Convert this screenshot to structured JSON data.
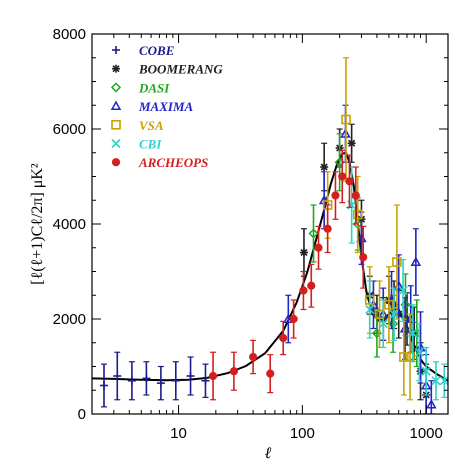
{
  "chart_data": {
    "type": "scatter",
    "xlabel": "ℓ",
    "ylabel": "[ℓ(ℓ+1)Cℓ/2π] μK²",
    "xscale": "log",
    "xlim": [
      2,
      1500
    ],
    "ylim": [
      0,
      8000
    ],
    "x_ticks": [
      10,
      100,
      1000
    ],
    "x_tick_labels": [
      "10",
      "100",
      "1000"
    ],
    "y_ticks": [
      0,
      2000,
      4000,
      6000,
      8000
    ],
    "y_tick_labels": [
      "0",
      "2000",
      "4000",
      "6000",
      "8000"
    ],
    "legend_position": "top-left",
    "model_curve": {
      "color": "#000000",
      "x": [
        2,
        3,
        5,
        8,
        12,
        17,
        25,
        35,
        50,
        70,
        90,
        110,
        130,
        150,
        170,
        190,
        210,
        225,
        240,
        260,
        280,
        300,
        330,
        370,
        420,
        480,
        540,
        600,
        700,
        800,
        900,
        1000,
        1200,
        1500
      ],
      "y": [
        750,
        740,
        720,
        710,
        720,
        760,
        860,
        1010,
        1280,
        1750,
        2350,
        3000,
        3700,
        4300,
        4850,
        5250,
        5480,
        5500,
        5300,
        4800,
        4050,
        3300,
        2550,
        2100,
        1950,
        2050,
        2200,
        2200,
        1850,
        1450,
        1150,
        1000,
        850,
        700
      ]
    },
    "series": [
      {
        "name": "COBE",
        "color": "#1c1c8c",
        "marker": "plus",
        "points": [
          {
            "x": 2.5,
            "y": 600,
            "err": 450
          },
          {
            "x": 3.2,
            "y": 800,
            "err": 500
          },
          {
            "x": 4.2,
            "y": 700,
            "err": 400
          },
          {
            "x": 5.5,
            "y": 750,
            "err": 350
          },
          {
            "x": 7.2,
            "y": 650,
            "err": 350
          },
          {
            "x": 9.5,
            "y": 700,
            "err": 400
          },
          {
            "x": 12.5,
            "y": 800,
            "err": 400
          },
          {
            "x": 16.5,
            "y": 700,
            "err": 350
          }
        ]
      },
      {
        "name": "BOOMERANG",
        "color": "#222222",
        "marker": "star",
        "points": [
          {
            "x": 103,
            "y": 3400,
            "err": 500
          },
          {
            "x": 150,
            "y": 5200,
            "err": 500
          },
          {
            "x": 200,
            "y": 5600,
            "err": 400
          },
          {
            "x": 250,
            "y": 5700,
            "err": 400
          },
          {
            "x": 300,
            "y": 4100,
            "err": 400
          },
          {
            "x": 350,
            "y": 2500,
            "err": 400
          },
          {
            "x": 400,
            "y": 2100,
            "err": 400
          },
          {
            "x": 450,
            "y": 2000,
            "err": 450
          },
          {
            "x": 500,
            "y": 2400,
            "err": 500
          },
          {
            "x": 550,
            "y": 2300,
            "err": 500
          },
          {
            "x": 600,
            "y": 2100,
            "err": 500
          },
          {
            "x": 700,
            "y": 2000,
            "err": 550
          },
          {
            "x": 800,
            "y": 1700,
            "err": 550
          },
          {
            "x": 900,
            "y": 900,
            "err": 600
          },
          {
            "x": 1000,
            "y": 400,
            "err": 650
          }
        ]
      },
      {
        "name": "DASI",
        "color": "#1fa71f",
        "marker": "diamond",
        "points": [
          {
            "x": 123,
            "y": 3800,
            "err": 600
          },
          {
            "x": 200,
            "y": 5300,
            "err": 600
          },
          {
            "x": 280,
            "y": 4000,
            "err": 550
          },
          {
            "x": 400,
            "y": 1700,
            "err": 500
          },
          {
            "x": 540,
            "y": 1900,
            "err": 600
          },
          {
            "x": 680,
            "y": 2300,
            "err": 650
          },
          {
            "x": 840,
            "y": 1700,
            "err": 700
          }
        ]
      },
      {
        "name": "MAXIMA",
        "color": "#2323c8",
        "marker": "triangle",
        "points": [
          {
            "x": 77,
            "y": 2000,
            "err": 500
          },
          {
            "x": 150,
            "y": 4500,
            "err": 600
          },
          {
            "x": 223,
            "y": 5900,
            "err": 600
          },
          {
            "x": 300,
            "y": 3700,
            "err": 550
          },
          {
            "x": 375,
            "y": 2300,
            "err": 500
          },
          {
            "x": 450,
            "y": 2100,
            "err": 550
          },
          {
            "x": 525,
            "y": 2400,
            "err": 600
          },
          {
            "x": 600,
            "y": 2700,
            "err": 650
          },
          {
            "x": 675,
            "y": 1800,
            "err": 650
          },
          {
            "x": 750,
            "y": 2000,
            "err": 700
          },
          {
            "x": 825,
            "y": 3200,
            "err": 700
          },
          {
            "x": 900,
            "y": 1400,
            "err": 750
          },
          {
            "x": 1000,
            "y": 600,
            "err": 650
          },
          {
            "x": 1100,
            "y": 200,
            "err": 500
          }
        ]
      },
      {
        "name": "VSA",
        "color": "#c8a200",
        "marker": "square",
        "points": [
          {
            "x": 160,
            "y": 4400,
            "err": 700
          },
          {
            "x": 225,
            "y": 6200,
            "err": 1300
          },
          {
            "x": 280,
            "y": 4200,
            "err": 800
          },
          {
            "x": 350,
            "y": 2400,
            "err": 700
          },
          {
            "x": 420,
            "y": 2100,
            "err": 700
          },
          {
            "x": 500,
            "y": 2300,
            "err": 800
          },
          {
            "x": 580,
            "y": 3200,
            "err": 1200
          },
          {
            "x": 660,
            "y": 1200,
            "err": 800
          },
          {
            "x": 740,
            "y": 1200,
            "err": 900
          }
        ]
      },
      {
        "name": "CBI",
        "color": "#2fd1c9",
        "marker": "cross",
        "points": [
          {
            "x": 250,
            "y": 4400,
            "err": 800
          },
          {
            "x": 350,
            "y": 2200,
            "err": 600
          },
          {
            "x": 450,
            "y": 1900,
            "err": 500
          },
          {
            "x": 550,
            "y": 2100,
            "err": 550
          },
          {
            "x": 650,
            "y": 2600,
            "err": 650
          },
          {
            "x": 780,
            "y": 1700,
            "err": 600
          },
          {
            "x": 880,
            "y": 1300,
            "err": 600
          },
          {
            "x": 1000,
            "y": 900,
            "err": 500
          },
          {
            "x": 1200,
            "y": 700,
            "err": 400
          },
          {
            "x": 1400,
            "y": 700,
            "err": 350
          }
        ]
      },
      {
        "name": "ARCHEOPS",
        "color": "#d31f1f",
        "marker": "circle",
        "points": [
          {
            "x": 19,
            "y": 800,
            "err": 500
          },
          {
            "x": 28,
            "y": 900,
            "err": 400
          },
          {
            "x": 40,
            "y": 1200,
            "err": 350
          },
          {
            "x": 55,
            "y": 850,
            "err": 400
          },
          {
            "x": 70,
            "y": 1600,
            "err": 350
          },
          {
            "x": 85,
            "y": 2000,
            "err": 400
          },
          {
            "x": 102,
            "y": 2600,
            "err": 400
          },
          {
            "x": 118,
            "y": 2700,
            "err": 450
          },
          {
            "x": 135,
            "y": 3500,
            "err": 450
          },
          {
            "x": 160,
            "y": 3900,
            "err": 500
          },
          {
            "x": 185,
            "y": 4600,
            "err": 500
          },
          {
            "x": 210,
            "y": 5000,
            "err": 550
          },
          {
            "x": 240,
            "y": 4900,
            "err": 550
          },
          {
            "x": 270,
            "y": 4600,
            "err": 600
          },
          {
            "x": 310,
            "y": 3300,
            "err": 650
          }
        ]
      }
    ]
  }
}
